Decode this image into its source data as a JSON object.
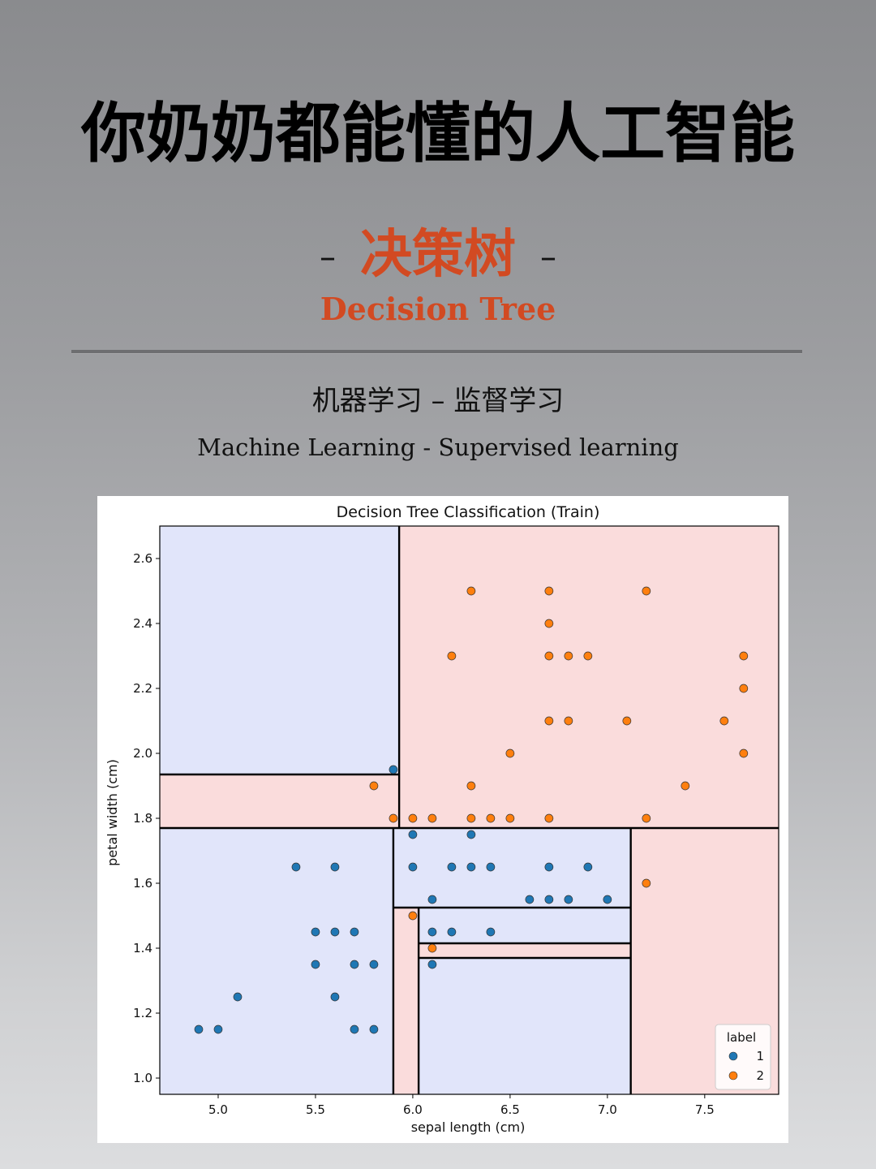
{
  "header": {
    "title": "你奶奶都能懂的人工智能",
    "subtitle_cn": "决策树",
    "subtitle_dash": "–",
    "subtitle_en": "Decision Tree",
    "category_cn": "机器学习 – 监督学习",
    "category_en": "Machine Learning - Supervised learning"
  },
  "colors": {
    "accent": "#d24a22",
    "region_class1": "#e1e5fa",
    "region_class2": "#fadcdc",
    "point_class1": "#1f77b4",
    "point_class2": "#ff7f0e"
  },
  "chart_data": {
    "type": "scatter",
    "title": "Decision Tree Classification (Train)",
    "xlabel": "sepal length (cm)",
    "ylabel": "petal width (cm)",
    "xlim": [
      4.7,
      7.88
    ],
    "ylim": [
      0.95,
      2.7
    ],
    "xticks": [
      "5.0",
      "5.5",
      "6.0",
      "6.5",
      "7.0",
      "7.5"
    ],
    "xtick_values": [
      5.0,
      5.5,
      6.0,
      6.5,
      7.0,
      7.5
    ],
    "yticks": [
      "1.0",
      "1.2",
      "1.4",
      "1.6",
      "1.8",
      "2.0",
      "2.2",
      "2.4",
      "2.6"
    ],
    "ytick_values": [
      1.0,
      1.2,
      1.4,
      1.6,
      1.8,
      2.0,
      2.2,
      2.4,
      2.6
    ],
    "grid": false,
    "legend": {
      "title": "label",
      "placement": "lower right",
      "entries": [
        "1",
        "2"
      ]
    },
    "regions": [
      {
        "label": "1",
        "x": [
          4.7,
          5.93
        ],
        "y": [
          1.935,
          2.7
        ]
      },
      {
        "label": "2",
        "x": [
          4.7,
          5.93
        ],
        "y": [
          1.77,
          1.935
        ]
      },
      {
        "label": "2",
        "x": [
          5.93,
          7.88
        ],
        "y": [
          1.77,
          2.7
        ]
      },
      {
        "label": "1",
        "x": [
          4.7,
          5.9
        ],
        "y": [
          0.95,
          1.77
        ]
      },
      {
        "label": "1",
        "x": [
          5.9,
          7.12
        ],
        "y": [
          1.525,
          1.77
        ]
      },
      {
        "label": "2",
        "x": [
          5.9,
          6.03
        ],
        "y": [
          0.95,
          1.525
        ]
      },
      {
        "label": "1",
        "x": [
          6.03,
          7.12
        ],
        "y": [
          1.415,
          1.525
        ]
      },
      {
        "label": "2",
        "x": [
          6.03,
          7.12
        ],
        "y": [
          1.37,
          1.415
        ]
      },
      {
        "label": "1",
        "x": [
          6.03,
          7.12
        ],
        "y": [
          0.95,
          1.37
        ]
      },
      {
        "label": "2",
        "x": [
          7.12,
          7.88
        ],
        "y": [
          0.95,
          1.77
        ]
      }
    ],
    "boundaries": [
      {
        "x": [
          5.93,
          5.93
        ],
        "y": [
          1.77,
          2.7
        ]
      },
      {
        "x": [
          4.7,
          5.93
        ],
        "y": [
          1.935,
          1.935
        ]
      },
      {
        "x": [
          4.7,
          7.88
        ],
        "y": [
          1.77,
          1.77
        ]
      },
      {
        "x": [
          5.9,
          5.9
        ],
        "y": [
          0.95,
          1.77
        ]
      },
      {
        "x": [
          7.12,
          7.12
        ],
        "y": [
          0.95,
          1.77
        ]
      },
      {
        "x": [
          5.9,
          7.12
        ],
        "y": [
          1.525,
          1.525
        ]
      },
      {
        "x": [
          6.03,
          6.03
        ],
        "y": [
          0.95,
          1.525
        ]
      },
      {
        "x": [
          6.03,
          7.12
        ],
        "y": [
          1.415,
          1.415
        ]
      },
      {
        "x": [
          6.03,
          7.12
        ],
        "y": [
          1.37,
          1.37
        ]
      }
    ],
    "series": [
      {
        "name": "1",
        "points": [
          [
            4.9,
            1.15
          ],
          [
            5.0,
            1.15
          ],
          [
            5.1,
            1.25
          ],
          [
            5.4,
            1.65
          ],
          [
            5.5,
            1.45
          ],
          [
            5.5,
            1.35
          ],
          [
            5.6,
            1.65
          ],
          [
            5.6,
            1.45
          ],
          [
            5.6,
            1.25
          ],
          [
            5.7,
            1.45
          ],
          [
            5.7,
            1.35
          ],
          [
            5.7,
            1.15
          ],
          [
            5.8,
            1.35
          ],
          [
            5.8,
            1.15
          ],
          [
            5.9,
            1.95
          ],
          [
            6.0,
            1.75
          ],
          [
            6.0,
            1.65
          ],
          [
            6.1,
            1.55
          ],
          [
            6.1,
            1.45
          ],
          [
            6.1,
            1.35
          ],
          [
            6.2,
            1.65
          ],
          [
            6.2,
            1.45
          ],
          [
            6.3,
            1.75
          ],
          [
            6.3,
            1.65
          ],
          [
            6.4,
            1.65
          ],
          [
            6.4,
            1.45
          ],
          [
            6.6,
            1.55
          ],
          [
            6.7,
            1.65
          ],
          [
            6.7,
            1.55
          ],
          [
            6.8,
            1.55
          ],
          [
            6.9,
            1.65
          ],
          [
            7.0,
            1.55
          ]
        ]
      },
      {
        "name": "2",
        "points": [
          [
            5.8,
            1.9
          ],
          [
            5.9,
            1.8
          ],
          [
            6.0,
            1.8
          ],
          [
            6.1,
            1.8
          ],
          [
            6.2,
            2.3
          ],
          [
            6.3,
            2.5
          ],
          [
            6.3,
            1.9
          ],
          [
            6.3,
            1.8
          ],
          [
            6.4,
            1.8
          ],
          [
            6.5,
            2.0
          ],
          [
            6.5,
            1.8
          ],
          [
            6.7,
            2.5
          ],
          [
            6.7,
            2.4
          ],
          [
            6.7,
            2.3
          ],
          [
            6.7,
            2.1
          ],
          [
            6.7,
            1.8
          ],
          [
            6.8,
            2.3
          ],
          [
            6.8,
            2.1
          ],
          [
            6.9,
            2.3
          ],
          [
            7.1,
            2.1
          ],
          [
            7.2,
            2.5
          ],
          [
            7.2,
            1.8
          ],
          [
            7.2,
            1.6
          ],
          [
            7.4,
            1.9
          ],
          [
            7.6,
            2.1
          ],
          [
            7.7,
            2.3
          ],
          [
            7.7,
            2.2
          ],
          [
            7.7,
            2.0
          ],
          [
            6.0,
            1.5
          ],
          [
            6.1,
            1.4
          ]
        ]
      }
    ]
  }
}
